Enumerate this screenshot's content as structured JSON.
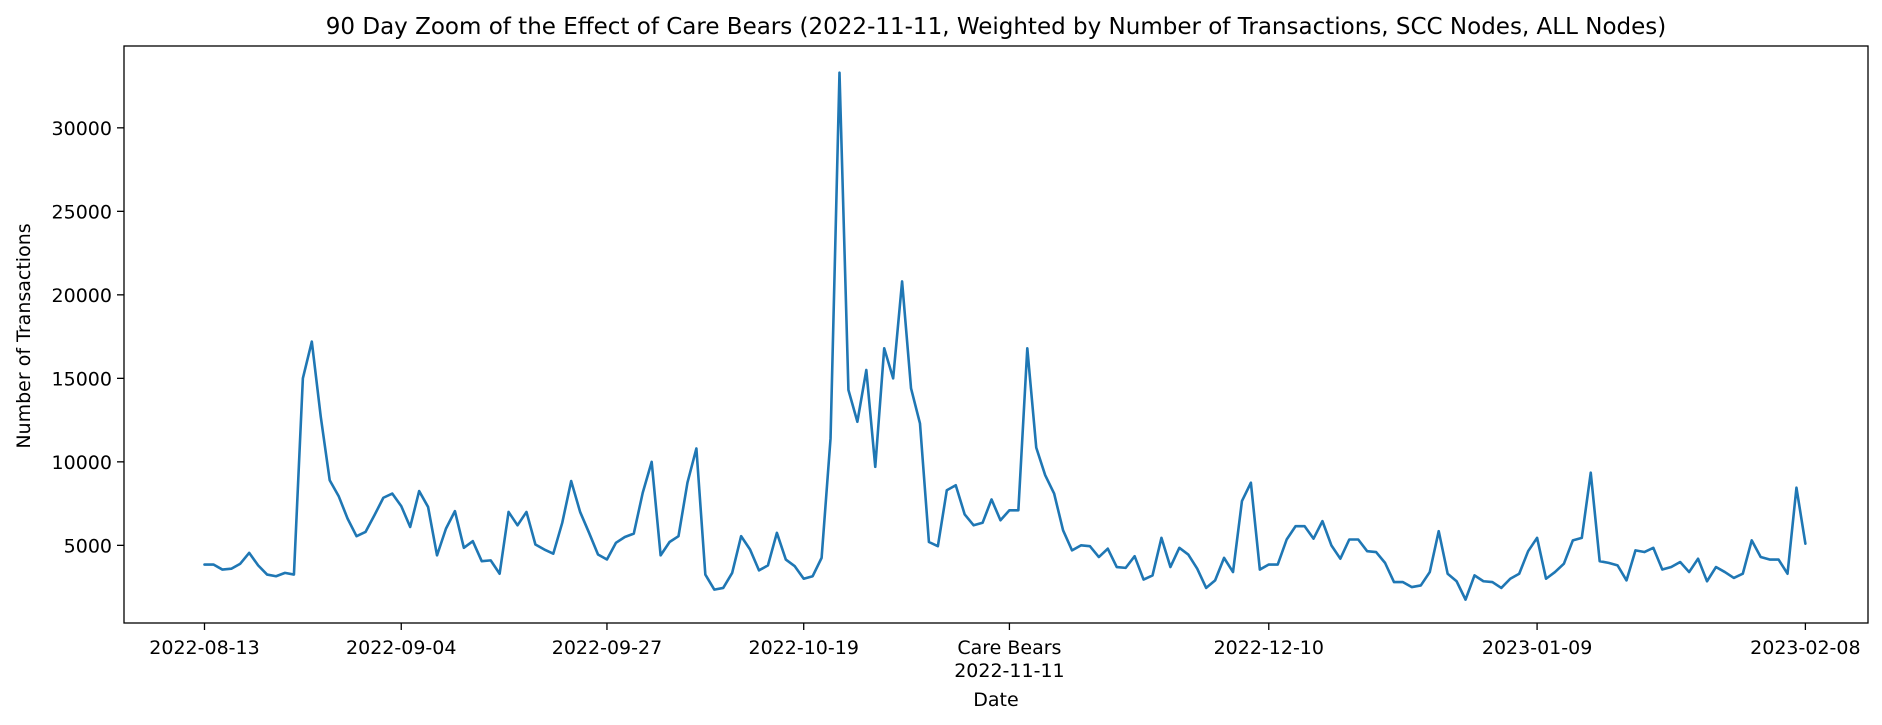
{
  "chart_data": {
    "type": "line",
    "title": "90 Day Zoom of the Effect of Care Bears (2022-11-11, Weighted by Number of Transactions, SCC Nodes, ALL Nodes)",
    "xlabel": "Date",
    "ylabel": "Number of Transactions",
    "xlim": [
      "2022-08-04",
      "2023-02-15"
    ],
    "ylim": [
      350,
      34900
    ],
    "grid": false,
    "legend": "none",
    "colors": {
      "line": "#1f77b4",
      "axes": "#000000",
      "background": "#ffffff"
    },
    "x_ticks": [
      {
        "date": "2022-08-13",
        "label": "2022-08-13"
      },
      {
        "date": "2022-09-04",
        "label": "2022-09-04"
      },
      {
        "date": "2022-09-27",
        "label": "2022-09-27"
      },
      {
        "date": "2022-10-19",
        "label": "2022-10-19"
      },
      {
        "date": "2022-11-11",
        "label": "Care Bears",
        "sublabel": "2022-11-11"
      },
      {
        "date": "2022-12-10",
        "label": "2022-12-10"
      },
      {
        "date": "2023-01-09",
        "label": "2023-01-09"
      },
      {
        "date": "2023-02-08",
        "label": "2023-02-08"
      }
    ],
    "y_ticks": [
      5000,
      10000,
      15000,
      20000,
      25000,
      30000
    ],
    "series": [
      {
        "x": [
          "2022-08-13",
          "2022-08-14",
          "2022-08-15",
          "2022-08-16",
          "2022-08-17",
          "2022-08-18",
          "2022-08-19",
          "2022-08-20",
          "2022-08-21",
          "2022-08-22",
          "2022-08-23",
          "2022-08-24",
          "2022-08-25",
          "2022-08-26",
          "2022-08-27",
          "2022-08-28",
          "2022-08-29",
          "2022-08-30",
          "2022-08-31",
          "2022-09-01",
          "2022-09-02",
          "2022-09-03",
          "2022-09-04",
          "2022-09-05",
          "2022-09-06",
          "2022-09-07",
          "2022-09-08",
          "2022-09-09",
          "2022-09-10",
          "2022-09-11",
          "2022-09-12",
          "2022-09-13",
          "2022-09-14",
          "2022-09-15",
          "2022-09-16",
          "2022-09-17",
          "2022-09-18",
          "2022-09-19",
          "2022-09-20",
          "2022-09-21",
          "2022-09-22",
          "2022-09-23",
          "2022-09-24",
          "2022-09-25",
          "2022-09-26",
          "2022-09-27",
          "2022-09-28",
          "2022-09-29",
          "2022-09-30",
          "2022-10-01",
          "2022-10-02",
          "2022-10-03",
          "2022-10-04",
          "2022-10-05",
          "2022-10-06",
          "2022-10-07",
          "2022-10-08",
          "2022-10-09",
          "2022-10-10",
          "2022-10-11",
          "2022-10-12",
          "2022-10-13",
          "2022-10-14",
          "2022-10-15",
          "2022-10-16",
          "2022-10-17",
          "2022-10-18",
          "2022-10-19",
          "2022-10-20",
          "2022-10-21",
          "2022-10-22",
          "2022-10-23",
          "2022-10-24",
          "2022-10-25",
          "2022-10-26",
          "2022-10-27",
          "2022-10-28",
          "2022-10-29",
          "2022-10-30",
          "2022-10-31",
          "2022-11-01",
          "2022-11-02",
          "2022-11-03",
          "2022-11-04",
          "2022-11-05",
          "2022-11-06",
          "2022-11-07",
          "2022-11-08",
          "2022-11-09",
          "2022-11-10",
          "2022-11-11",
          "2022-11-12",
          "2022-11-13",
          "2022-11-14",
          "2022-11-15",
          "2022-11-16",
          "2022-11-17",
          "2022-11-18",
          "2022-11-19",
          "2022-11-20",
          "2022-11-21",
          "2022-11-22",
          "2022-11-23",
          "2022-11-24",
          "2022-11-25",
          "2022-11-26",
          "2022-11-27",
          "2022-11-28",
          "2022-11-29",
          "2022-11-30",
          "2022-12-01",
          "2022-12-02",
          "2022-12-03",
          "2022-12-04",
          "2022-12-05",
          "2022-12-06",
          "2022-12-07",
          "2022-12-08",
          "2022-12-09",
          "2022-12-10",
          "2022-12-11",
          "2022-12-12",
          "2022-12-13",
          "2022-12-14",
          "2022-12-15",
          "2022-12-16",
          "2022-12-17",
          "2022-12-18",
          "2022-12-19",
          "2022-12-20",
          "2022-12-21",
          "2022-12-22",
          "2022-12-23",
          "2022-12-24",
          "2022-12-25",
          "2022-12-26",
          "2022-12-27",
          "2022-12-28",
          "2022-12-29",
          "2022-12-30",
          "2022-12-31",
          "2023-01-01",
          "2023-01-02",
          "2023-01-03",
          "2023-01-04",
          "2023-01-05",
          "2023-01-06",
          "2023-01-07",
          "2023-01-08",
          "2023-01-09",
          "2023-01-10",
          "2023-01-11",
          "2023-01-12",
          "2023-01-13",
          "2023-01-14",
          "2023-01-15",
          "2023-01-16",
          "2023-01-17",
          "2023-01-18",
          "2023-01-19",
          "2023-01-20",
          "2023-01-21",
          "2023-01-22",
          "2023-01-23",
          "2023-01-24",
          "2023-01-25",
          "2023-01-26",
          "2023-01-27",
          "2023-01-28",
          "2023-01-29",
          "2023-01-30",
          "2023-01-31",
          "2023-02-01",
          "2023-02-02",
          "2023-02-03",
          "2023-02-04",
          "2023-02-05",
          "2023-02-06",
          "2023-02-07",
          "2023-02-08"
        ],
        "values": [
          3850,
          3850,
          3550,
          3600,
          3900,
          4550,
          3800,
          3250,
          3150,
          3350,
          3250,
          15000,
          17200,
          12700,
          8900,
          7950,
          6600,
          5550,
          5800,
          6800,
          7850,
          8100,
          7350,
          6100,
          8250,
          7300,
          4400,
          6000,
          7050,
          4850,
          5250,
          4050,
          4100,
          3300,
          7000,
          6200,
          7000,
          5050,
          4750,
          4500,
          6350,
          8850,
          7000,
          5750,
          4450,
          4150,
          5150,
          5500,
          5700,
          8150,
          10000,
          4400,
          5200,
          5550,
          8750,
          10800,
          3250,
          2350,
          2450,
          3350,
          5550,
          4750,
          3500,
          3800,
          5750,
          4150,
          3750,
          3000,
          3150,
          4250,
          11400,
          33300,
          14300,
          12400,
          15500,
          9700,
          16800,
          15000,
          20800,
          14400,
          12300,
          5200,
          4950,
          8300,
          8600,
          6850,
          6200,
          6350,
          7750,
          6500,
          7100,
          7100,
          16800,
          10850,
          9200,
          8100,
          5900,
          4700,
          5000,
          4950,
          4300,
          4800,
          3700,
          3650,
          4350,
          2950,
          3200,
          5450,
          3700,
          4850,
          4450,
          3600,
          2450,
          2900,
          4250,
          3400,
          7650,
          8750,
          3550,
          3850,
          3850,
          5350,
          6150,
          6150,
          5400,
          6450,
          5000,
          4200,
          5350,
          5350,
          4650,
          4600,
          3950,
          2800,
          2800,
          2500,
          2600,
          3400,
          5850,
          3300,
          2850,
          1750,
          3200,
          2850,
          2800,
          2450,
          3000,
          3300,
          4650,
          5450,
          3000,
          3400,
          3900,
          5300,
          5450,
          9350,
          4050,
          3950,
          3800,
          2900,
          4700,
          4600,
          4850,
          3550,
          3700,
          4000,
          3400,
          4200,
          2850,
          3700,
          3400,
          3050,
          3300,
          5300,
          4300,
          4150,
          4150,
          3300,
          8450,
          5100
        ]
      }
    ]
  }
}
